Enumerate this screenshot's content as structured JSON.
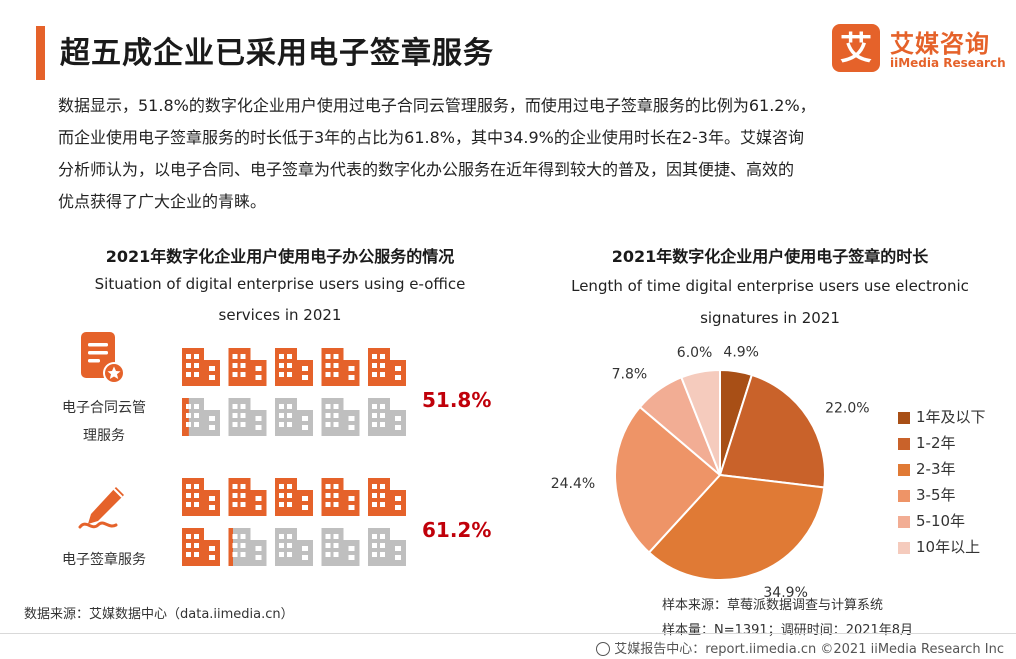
{
  "title": "超五成企业已采用电子签章服务",
  "brand": {
    "mark": "艾",
    "name_cn": "艾媒咨询",
    "name_en": "iiMedia Research"
  },
  "intro_lines": [
    "数据显示，51.8%的数字化企业用户使用过电子合同云管理服务，而使用过电子签章服务的比例为61.2%，",
    "而企业使用电子签章服务的时长低于3年的占比为61.8%，其中34.9%的企业使用时长在2-3年。艾媒咨询",
    "分析师认为，以电子合同、电子签章为代表的数字化办公服务在近年得到较大的普及，因其便捷、高效的",
    "优点获得了广大企业的青睐。"
  ],
  "colors": {
    "accent": "#e5622a",
    "building_on": "#e5622a",
    "building_off": "#bfbfbf",
    "pct": "#c0000a"
  },
  "chart_data": [
    {
      "type": "bar",
      "title": "2021年数字化企业用户使用电子办公服务的情况",
      "subtitle_lines": [
        "Situation of digital enterprise users using e-office",
        "services in 2021"
      ],
      "categories": [
        "电子合同云管理服务",
        "电子签章服务"
      ],
      "label_lines": [
        [
          "电子合同云管",
          "理服务"
        ],
        [
          "电子签章服务"
        ]
      ],
      "icons": [
        "contract-document-icon",
        "signature-pen-icon"
      ],
      "values": [
        51.8,
        61.2
      ],
      "value_labels": [
        "51.8%",
        "61.2%"
      ],
      "unit": "%",
      "ylim": [
        0,
        100
      ]
    },
    {
      "type": "pie",
      "title": "2021年数字化企业用户使用电子签章的时长",
      "subtitle_lines": [
        "Length of time digital enterprise users use electronic",
        "signatures in 2021"
      ],
      "categories": [
        "1年及以下",
        "1-2年",
        "2-3年",
        "3-5年",
        "5-10年",
        "10年以上"
      ],
      "values": [
        4.9,
        22.0,
        34.9,
        24.4,
        7.8,
        6.0
      ],
      "value_labels": [
        "4.9%",
        "22.0%",
        "34.9%",
        "24.4%",
        "7.8%",
        "6.0%"
      ],
      "colors": [
        "#a84f16",
        "#c9622a",
        "#e07a35",
        "#ee9467",
        "#f2ad94",
        "#f5cbbd"
      ],
      "legend": "right"
    }
  ],
  "footnote": {
    "source": "样本来源：草莓派数据调查与计算系统",
    "sample": "样本量：N=1391；调研时间：2021年8月"
  },
  "data_source": "数据来源：艾媒数据中心（data.iimedia.cn）",
  "bottom_credit": "艾媒报告中心：report.iimedia.cn  ©2021  iiMedia Research  Inc"
}
